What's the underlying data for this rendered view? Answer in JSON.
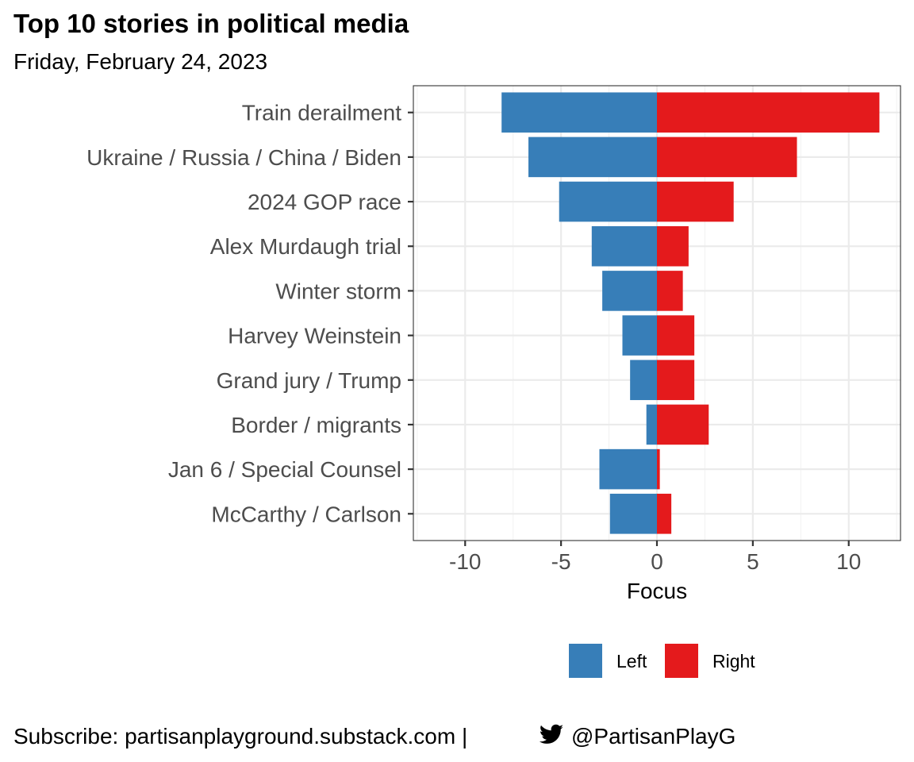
{
  "colors": {
    "left": "#377eb8",
    "right": "#e41a1c"
  },
  "chart_data": {
    "type": "bar",
    "orientation": "horizontal",
    "stacked": "diverging",
    "title": "Top 10 stories in political media",
    "subtitle": "Friday, February 24, 2023",
    "xlabel": "Focus",
    "ylabel": "",
    "xlim": [
      -12.7,
      12.7
    ],
    "xticks": [
      -10,
      -5,
      0,
      5,
      10
    ],
    "xtick_labels": [
      "-10",
      "-5",
      "0",
      "5",
      "10"
    ],
    "grid": true,
    "legend_position": "bottom",
    "categories": [
      "Train derailment",
      "Ukraine / Russia / China / Biden",
      "2024 GOP race",
      "Alex Murdaugh trial",
      "Winter storm",
      "Harvey Weinstein",
      "Grand jury / Trump",
      "Border / migrants",
      "Jan 6 / Special Counsel",
      "McCarthy / Carlson"
    ],
    "series": [
      {
        "name": "Left",
        "values": [
          -8.1,
          -6.7,
          -5.1,
          -3.4,
          -2.85,
          -1.8,
          -1.4,
          -0.55,
          -3.0,
          -2.45
        ]
      },
      {
        "name": "Right",
        "values": [
          11.6,
          7.3,
          4.0,
          1.65,
          1.35,
          1.95,
          1.95,
          2.7,
          0.15,
          0.75
        ]
      }
    ]
  },
  "caption": {
    "prefix": "Subscribe: partisanplayground.substack.com | ",
    "icon": "twitter-bird-icon",
    "handle": "@PartisanPlayG"
  }
}
